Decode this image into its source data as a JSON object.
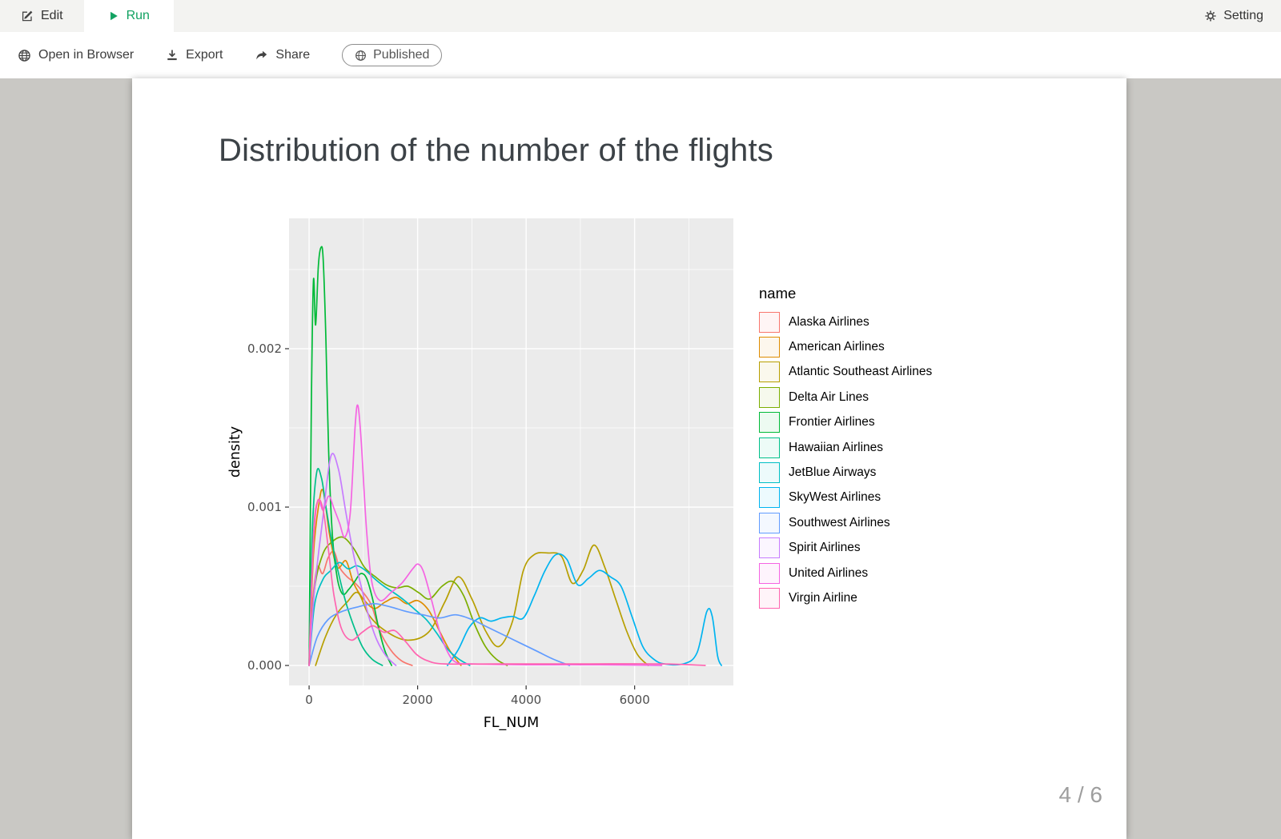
{
  "theme": {
    "accent_green": "#12a262",
    "content_background": "#c9c8c4",
    "icon_color": "#444444"
  },
  "tabbar": {
    "edit_label": "Edit",
    "run_label": "Run",
    "setting_label": "Setting"
  },
  "toolbar": {
    "open_in_browser_label": "Open in Browser",
    "export_label": "Export",
    "share_label": "Share",
    "published_label": "Published"
  },
  "slide": {
    "title": "Distribution of the number of the flights",
    "page_indicator": "4 / 6"
  },
  "chart_data": {
    "type": "line",
    "subtype": "density",
    "title": "",
    "xlabel": "FL_NUM",
    "ylabel": "density",
    "xlim": [
      -370,
      7820
    ],
    "ylim": [
      -0.000126,
      0.002823
    ],
    "x_ticks": [
      0,
      2000,
      4000,
      6000
    ],
    "x_tick_labels": [
      "0",
      "2000",
      "4000",
      "6000"
    ],
    "y_ticks": [
      0,
      0.001,
      0.002
    ],
    "y_tick_labels": [
      "0.000",
      "0.001",
      "0.002"
    ],
    "x_minor_ticks": [
      1000,
      3000,
      5000,
      7000
    ],
    "y_minor_ticks": [
      0.0005,
      0.0015,
      0.0025
    ],
    "panel_bg": "#EBEBEB",
    "grid_color": "#FFFFFF",
    "legend_title": "name",
    "legend_position": "right",
    "series": [
      {
        "name": "Alaska Airlines",
        "color": "#F8766D",
        "points": [
          [
            0,
            0
          ],
          [
            60,
            0.00038
          ],
          [
            150,
            0.00062
          ],
          [
            250,
            0.00058
          ],
          [
            350,
            0.00068
          ],
          [
            460,
            0.00072
          ],
          [
            560,
            0.00062
          ],
          [
            700,
            0.00056
          ],
          [
            850,
            0.00052
          ],
          [
            1000,
            0.00046
          ],
          [
            1150,
            0.00038
          ],
          [
            1300,
            0.00022
          ],
          [
            1500,
            0.0001
          ],
          [
            1700,
            3e-05
          ],
          [
            1900,
            0
          ]
        ]
      },
      {
        "name": "American Airlines",
        "color": "#DE8C00",
        "points": [
          [
            0,
            0
          ],
          [
            80,
            0.0007
          ],
          [
            180,
            0.00102
          ],
          [
            260,
            0.0011
          ],
          [
            380,
            0.00082
          ],
          [
            520,
            0.00062
          ],
          [
            680,
            0.00066
          ],
          [
            820,
            0.00052
          ],
          [
            1000,
            0.00042
          ],
          [
            1200,
            0.00036
          ],
          [
            1400,
            0.0004
          ],
          [
            1600,
            0.00043
          ],
          [
            1800,
            0.00039
          ],
          [
            2000,
            0.00041
          ],
          [
            2200,
            0.00035
          ],
          [
            2400,
            0.00022
          ],
          [
            2600,
            9e-05
          ],
          [
            2800,
            0
          ]
        ]
      },
      {
        "name": "Atlantic Southeast Airlines",
        "color": "#B79F00",
        "points": [
          [
            120,
            0
          ],
          [
            300,
            0.00018
          ],
          [
            500,
            0.00032
          ],
          [
            700,
            0.0004
          ],
          [
            900,
            0.00046
          ],
          [
            1100,
            0.00032
          ],
          [
            1400,
            0.00022
          ],
          [
            1800,
            0.00016
          ],
          [
            2200,
            0.00021
          ],
          [
            2500,
            0.0004
          ],
          [
            2750,
            0.00056
          ],
          [
            3000,
            0.00042
          ],
          [
            3250,
            0.00022
          ],
          [
            3500,
            0.00012
          ],
          [
            3750,
            0.00028
          ],
          [
            3950,
            0.0006
          ],
          [
            4150,
            0.0007
          ],
          [
            4400,
            0.00071
          ],
          [
            4650,
            0.00069
          ],
          [
            4850,
            0.00052
          ],
          [
            5050,
            0.0006
          ],
          [
            5250,
            0.00076
          ],
          [
            5450,
            0.00062
          ],
          [
            5650,
            0.00042
          ],
          [
            5850,
            0.00022
          ],
          [
            6050,
            7e-05
          ],
          [
            6250,
            0
          ]
        ]
      },
      {
        "name": "Delta Air Lines",
        "color": "#7CAE00",
        "points": [
          [
            0,
            0
          ],
          [
            100,
            0.00048
          ],
          [
            250,
            0.0007
          ],
          [
            420,
            0.00078
          ],
          [
            620,
            0.00081
          ],
          [
            820,
            0.00074
          ],
          [
            1020,
            0.00062
          ],
          [
            1220,
            0.00056
          ],
          [
            1420,
            0.00051
          ],
          [
            1620,
            0.00049
          ],
          [
            1820,
            0.0005
          ],
          [
            2020,
            0.00046
          ],
          [
            2220,
            0.00042
          ],
          [
            2450,
            0.0005
          ],
          [
            2650,
            0.00053
          ],
          [
            2850,
            0.00044
          ],
          [
            3050,
            0.00026
          ],
          [
            3250,
            0.00012
          ],
          [
            3450,
            4e-05
          ],
          [
            3650,
            0
          ]
        ]
      },
      {
        "name": "Frontier Airlines",
        "color": "#00BA38",
        "points": [
          [
            0,
            0
          ],
          [
            40,
            0.0016
          ],
          [
            80,
            0.00243
          ],
          [
            120,
            0.00215
          ],
          [
            170,
            0.00252
          ],
          [
            220,
            0.00264
          ],
          [
            260,
            0.00256
          ],
          [
            310,
            0.00205
          ],
          [
            360,
            0.00135
          ],
          [
            430,
            0.00082
          ],
          [
            520,
            0.00055
          ],
          [
            620,
            0.00045
          ],
          [
            730,
            0.00048
          ],
          [
            840,
            0.00053
          ],
          [
            950,
            0.00058
          ],
          [
            1060,
            0.00055
          ],
          [
            1170,
            0.00042
          ],
          [
            1280,
            0.00024
          ],
          [
            1400,
            9e-05
          ],
          [
            1520,
            0
          ]
        ]
      },
      {
        "name": "Hawaiian Airlines",
        "color": "#00C08B",
        "points": [
          [
            0,
            0
          ],
          [
            60,
            0.00085
          ],
          [
            140,
            0.00122
          ],
          [
            230,
            0.00118
          ],
          [
            320,
            0.00098
          ],
          [
            420,
            0.00078
          ],
          [
            530,
            0.0006
          ],
          [
            660,
            0.00042
          ],
          [
            800,
            0.00027
          ],
          [
            980,
            0.00012
          ],
          [
            1160,
            4e-05
          ],
          [
            1350,
            0
          ]
        ]
      },
      {
        "name": "JetBlue Airways",
        "color": "#00BFC4",
        "points": [
          [
            0,
            0
          ],
          [
            100,
            0.00038
          ],
          [
            250,
            0.00054
          ],
          [
            400,
            0.0006
          ],
          [
            560,
            0.00065
          ],
          [
            720,
            0.00061
          ],
          [
            880,
            0.00063
          ],
          [
            1040,
            0.0006
          ],
          [
            1200,
            0.00055
          ],
          [
            1380,
            0.0005
          ],
          [
            1560,
            0.00046
          ],
          [
            1760,
            0.00041
          ],
          [
            1960,
            0.00035
          ],
          [
            2160,
            0.00029
          ],
          [
            2360,
            0.0002
          ],
          [
            2560,
            0.0001
          ],
          [
            2760,
            4e-05
          ],
          [
            2960,
            0
          ]
        ]
      },
      {
        "name": "SkyWest Airlines",
        "color": "#00B4F0",
        "points": [
          [
            2550,
            0
          ],
          [
            2750,
            0.0001
          ],
          [
            2950,
            0.00024
          ],
          [
            3150,
            0.0003
          ],
          [
            3350,
            0.00028
          ],
          [
            3550,
            0.0003
          ],
          [
            3750,
            0.00031
          ],
          [
            3950,
            0.0003
          ],
          [
            4150,
            0.00044
          ],
          [
            4350,
            0.0006
          ],
          [
            4550,
            0.0007
          ],
          [
            4750,
            0.00067
          ],
          [
            4950,
            0.00051
          ],
          [
            5150,
            0.00055
          ],
          [
            5350,
            0.0006
          ],
          [
            5550,
            0.00056
          ],
          [
            5750,
            0.0005
          ],
          [
            5950,
            0.00031
          ],
          [
            6150,
            0.00012
          ],
          [
            6350,
            4e-05
          ],
          [
            6550,
            1e-05
          ],
          [
            6900,
            1e-05
          ],
          [
            7150,
            8e-05
          ],
          [
            7330,
            0.00034
          ],
          [
            7430,
            0.00031
          ],
          [
            7530,
            6e-05
          ],
          [
            7600,
            0
          ]
        ]
      },
      {
        "name": "Southwest Airlines",
        "color": "#619CFF",
        "points": [
          [
            0,
            0
          ],
          [
            150,
            0.00018
          ],
          [
            350,
            0.00029
          ],
          [
            600,
            0.00034
          ],
          [
            900,
            0.00037
          ],
          [
            1200,
            0.00039
          ],
          [
            1500,
            0.00037
          ],
          [
            1800,
            0.00034
          ],
          [
            2100,
            0.00032
          ],
          [
            2400,
            0.0003
          ],
          [
            2700,
            0.00032
          ],
          [
            3000,
            0.00029
          ],
          [
            3300,
            0.00024
          ],
          [
            3600,
            0.00019
          ],
          [
            3900,
            0.00014
          ],
          [
            4200,
            9e-05
          ],
          [
            4500,
            4e-05
          ],
          [
            4800,
            0
          ]
        ]
      },
      {
        "name": "Spirit Airlines",
        "color": "#C77CFF",
        "points": [
          [
            0,
            0
          ],
          [
            100,
            0.00048
          ],
          [
            250,
            0.00092
          ],
          [
            400,
            0.00132
          ],
          [
            540,
            0.00124
          ],
          [
            680,
            0.00096
          ],
          [
            820,
            0.0007
          ],
          [
            960,
            0.0005
          ],
          [
            1100,
            0.00031
          ],
          [
            1250,
            0.00016
          ],
          [
            1420,
            6e-05
          ],
          [
            1600,
            0
          ]
        ]
      },
      {
        "name": "United Airlines",
        "color": "#F564E3",
        "points": [
          [
            0,
            0
          ],
          [
            80,
            0.00078
          ],
          [
            160,
            0.00104
          ],
          [
            260,
            0.00098
          ],
          [
            360,
            0.00107
          ],
          [
            460,
            0.00099
          ],
          [
            560,
            0.0009
          ],
          [
            660,
            0.00081
          ],
          [
            760,
            0.00097
          ],
          [
            850,
            0.00152
          ],
          [
            900,
            0.00164
          ],
          [
            960,
            0.00142
          ],
          [
            1060,
            0.00085
          ],
          [
            1160,
            0.00052
          ],
          [
            1310,
            0.00041
          ],
          [
            1510,
            0.00046
          ],
          [
            1710,
            0.00052
          ],
          [
            1910,
            0.00061
          ],
          [
            2010,
            0.00064
          ],
          [
            2110,
            0.00059
          ],
          [
            2260,
            0.00041
          ],
          [
            2410,
            0.00021
          ],
          [
            2560,
            8e-05
          ],
          [
            2710,
            2e-05
          ],
          [
            3000,
            1e-05
          ],
          [
            4000,
            5e-06
          ],
          [
            5000,
            5e-06
          ],
          [
            6000,
            3e-06
          ],
          [
            6500,
            0
          ]
        ]
      },
      {
        "name": "Virgin Airline",
        "color": "#FF64B0",
        "points": [
          [
            0,
            0
          ],
          [
            80,
            0.00082
          ],
          [
            160,
            0.00104
          ],
          [
            260,
            0.00098
          ],
          [
            360,
            0.00072
          ],
          [
            460,
            0.00044
          ],
          [
            600,
            0.00023
          ],
          [
            780,
            0.00016
          ],
          [
            980,
            0.00021
          ],
          [
            1180,
            0.00025
          ],
          [
            1380,
            0.00021
          ],
          [
            1580,
            0.00022
          ],
          [
            1780,
            0.00015
          ],
          [
            1980,
            7e-05
          ],
          [
            2180,
            3e-05
          ],
          [
            2500,
            1e-05
          ],
          [
            3500,
            1e-05
          ],
          [
            5000,
            1e-05
          ],
          [
            6500,
            1e-05
          ],
          [
            7300,
            0
          ]
        ]
      }
    ]
  }
}
